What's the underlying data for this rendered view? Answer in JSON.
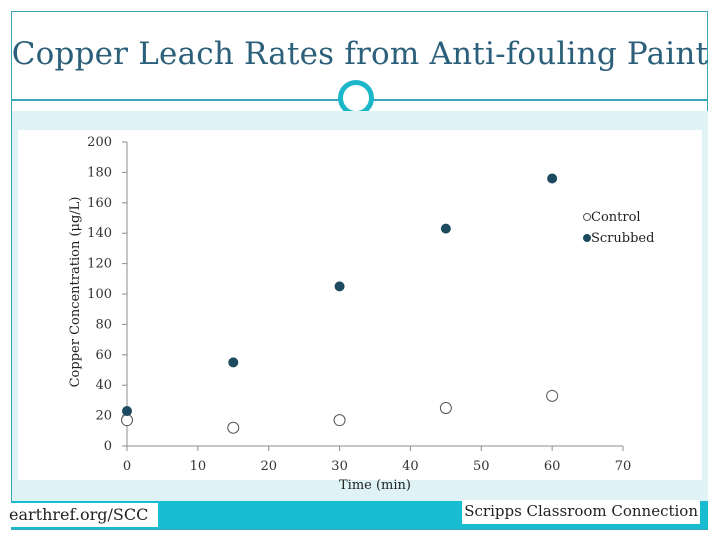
{
  "title": "Copper Leach Rates from Anti-fouling Paint",
  "footer": {
    "left": "earthref.org/SCC",
    "right": "Scripps Classroom Connection"
  },
  "colors": {
    "accent": "#1bb6c8",
    "title": "#2b5f7a",
    "panel": "#dff3f7",
    "marker": "#1d4a5e"
  },
  "chart_data": {
    "type": "scatter",
    "xlabel": "Time (min)",
    "ylabel": "Copper Concentration (μg/L)",
    "xlim": [
      0,
      70
    ],
    "ylim": [
      0,
      200
    ],
    "x_ticks": [
      0,
      10,
      20,
      30,
      40,
      50,
      60,
      70
    ],
    "y_ticks": [
      0,
      20,
      40,
      60,
      80,
      100,
      120,
      140,
      160,
      180,
      200
    ],
    "grid": false,
    "legend_position": "right",
    "series": [
      {
        "name": "Control",
        "marker": "open-circle",
        "points": [
          [
            0,
            17
          ],
          [
            15,
            12
          ],
          [
            30,
            17
          ],
          [
            45,
            25
          ],
          [
            60,
            33
          ]
        ]
      },
      {
        "name": "Scrubbed",
        "marker": "filled-circle",
        "points": [
          [
            0,
            23
          ],
          [
            15,
            55
          ],
          [
            30,
            105
          ],
          [
            45,
            143
          ],
          [
            60,
            176
          ]
        ]
      }
    ]
  }
}
